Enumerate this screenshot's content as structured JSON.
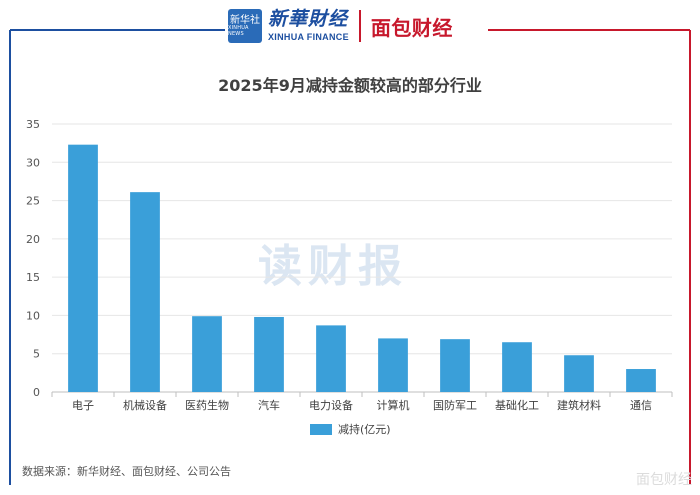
{
  "header": {
    "xinhua_badge": "新华社",
    "xinhua_badge_sub": "XINHUA NEWS",
    "xinhua_cn": "新華財经",
    "xinhua_en": "XINHUA FINANCE",
    "mianbao_logo": "面包财经"
  },
  "colors": {
    "accent_blue": "#1d4fa0",
    "accent_red": "#c7182c",
    "bar": "#3a9fd9",
    "grid": "#e6e6e6"
  },
  "watermark": "读财报",
  "source_note": "数据来源：新华财经、面包财经、公司公告",
  "corner_mark": "面包财经",
  "chart_data": {
    "type": "bar",
    "title": "2025年9月减持金额较高的部分行业",
    "categories": [
      "电子",
      "机械设备",
      "医药生物",
      "汽车",
      "电力设备",
      "计算机",
      "国防军工",
      "基础化工",
      "建筑材料",
      "通信"
    ],
    "series": [
      {
        "name": "减持(亿元)",
        "values": [
          32.3,
          26.1,
          9.9,
          9.8,
          8.7,
          7.0,
          6.9,
          6.5,
          4.8,
          3.0
        ]
      }
    ],
    "xlabel": "",
    "ylabel": "",
    "ylim": [
      0,
      35
    ],
    "yticks": [
      0,
      5,
      10,
      15,
      20,
      25,
      30,
      35
    ],
    "grid": true,
    "legend": "bottom"
  }
}
